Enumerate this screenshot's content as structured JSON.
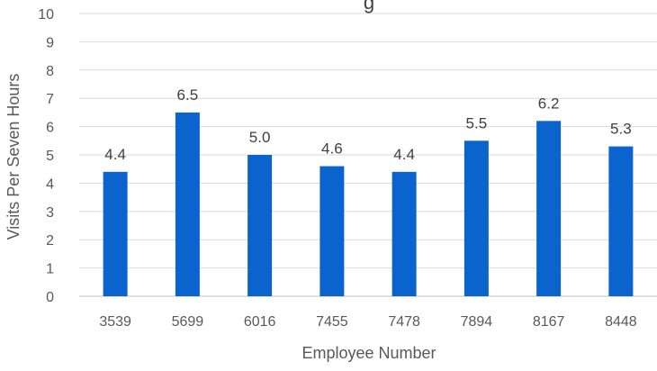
{
  "chart_data": {
    "type": "bar",
    "title": "g",
    "xlabel": "Employee Number",
    "ylabel": "Visits Per Seven Hours",
    "categories": [
      "3539",
      "5699",
      "6016",
      "7455",
      "7478",
      "7894",
      "8167",
      "8448"
    ],
    "values": [
      4.4,
      6.5,
      5.0,
      4.6,
      4.4,
      5.5,
      6.2,
      5.3
    ],
    "data_labels": [
      "4.4",
      "6.5",
      "5.0",
      "4.6",
      "4.4",
      "5.5",
      "6.2",
      "5.3"
    ],
    "ylim": [
      0,
      10
    ],
    "yticks": [
      "0",
      "1",
      "2",
      "3",
      "4",
      "5",
      "6",
      "7",
      "8",
      "9",
      "10"
    ],
    "grid": true,
    "legend": "none",
    "bar_color": "#0b63ce"
  }
}
